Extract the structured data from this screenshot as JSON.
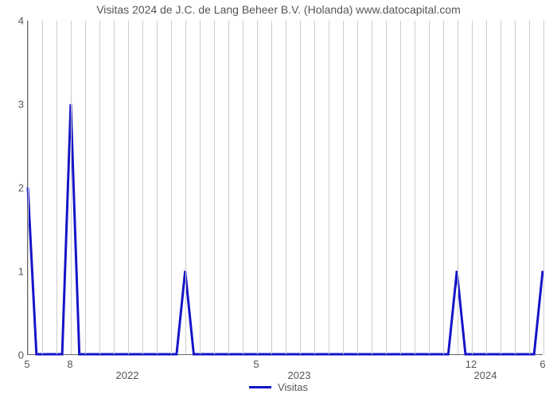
{
  "chart": {
    "type": "line",
    "title": "Visitas 2024 de J.C. de Lang Beheer B.V. (Holanda) www.datocapital.com",
    "title_fontsize": 14,
    "title_color": "#555555",
    "background_color": "#ffffff",
    "plot_border_color": "#666666",
    "grid_color": "#cccccc",
    "axis_label_color": "#555555",
    "axis_label_fontsize": 13,
    "line_color": "#1414c8",
    "line_width": 3,
    "y": {
      "lim": [
        0,
        4
      ],
      "ticks": [
        0,
        1,
        2,
        3,
        4
      ]
    },
    "x": {
      "lim": [
        0,
        36
      ],
      "major_ticks": [
        {
          "pos": 0,
          "label": "5"
        },
        {
          "pos": 3,
          "label": "8"
        },
        {
          "pos": 16,
          "label": "5"
        },
        {
          "pos": 31,
          "label": "12"
        },
        {
          "pos": 36,
          "label": "6"
        }
      ],
      "year_ticks": [
        {
          "pos": 7,
          "label": "2022"
        },
        {
          "pos": 19,
          "label": "2023"
        },
        {
          "pos": 32,
          "label": "2024"
        }
      ],
      "grid_positions": [
        0,
        1,
        2,
        3,
        4,
        5,
        6,
        7,
        8,
        9,
        10,
        11,
        12,
        13,
        14,
        15,
        16,
        17,
        18,
        19,
        20,
        21,
        22,
        23,
        24,
        25,
        26,
        27,
        28,
        29,
        30,
        31,
        32,
        33,
        34,
        35,
        36
      ]
    },
    "series": {
      "name": "Visitas",
      "points": [
        [
          0,
          2
        ],
        [
          0.6,
          0
        ],
        [
          2.4,
          0
        ],
        [
          3,
          3
        ],
        [
          3.6,
          0
        ],
        [
          10.4,
          0
        ],
        [
          11,
          1
        ],
        [
          11.6,
          0
        ],
        [
          29.4,
          0
        ],
        [
          30,
          1
        ],
        [
          30.6,
          0
        ],
        [
          35.4,
          0
        ],
        [
          36,
          1
        ]
      ]
    },
    "legend": {
      "label": "Visitas"
    }
  }
}
